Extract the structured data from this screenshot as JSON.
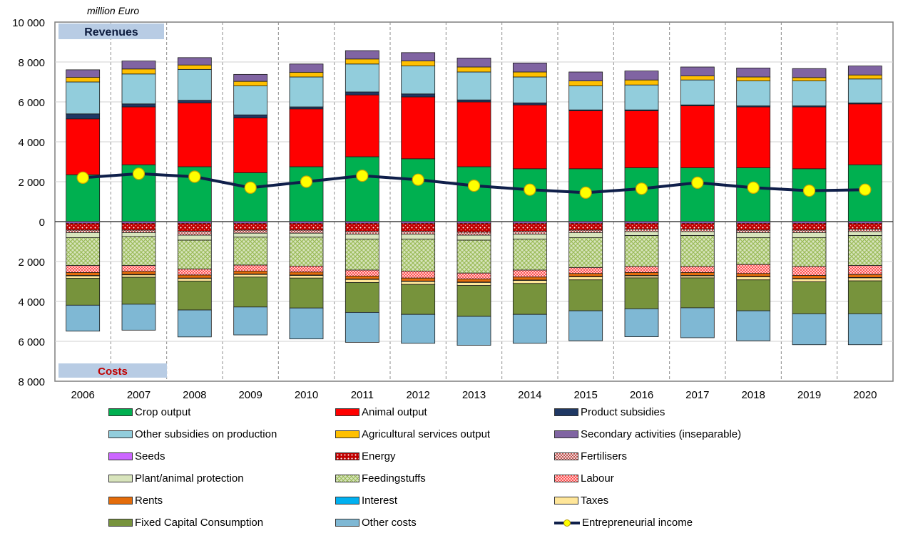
{
  "chart_data": {
    "type": "bar",
    "stacked": true,
    "unit_label": "million Euro",
    "revenues_label": "Revenues",
    "costs_label": "Costs",
    "categories": [
      "2006",
      "2007",
      "2008",
      "2009",
      "2010",
      "2011",
      "2012",
      "2013",
      "2014",
      "2015",
      "2016",
      "2017",
      "2018",
      "2019",
      "2020"
    ],
    "y_axis": {
      "ylim": [
        -8000,
        10000
      ],
      "ticks": [
        10000,
        8000,
        6000,
        4000,
        2000,
        0,
        -2000,
        -4000,
        -6000,
        -8000
      ],
      "tick_labels": [
        "10 000",
        "8 000",
        "6 000",
        "4 000",
        "2 000",
        "0",
        "2 000",
        "4 000",
        "6 000",
        "8 000"
      ]
    },
    "grid": true,
    "legend_position": "bottom",
    "revenue_series": [
      {
        "name": "Crop output",
        "color": "#00b050",
        "pattern": "solid",
        "values": [
          2350,
          2850,
          2750,
          2450,
          2750,
          3250,
          3150,
          2750,
          2650,
          2650,
          2700,
          2700,
          2700,
          2650,
          2850
        ]
      },
      {
        "name": "Animal output",
        "color": "#ff0000",
        "pattern": "solid",
        "values": [
          2800,
          2900,
          3200,
          2750,
          2900,
          3100,
          3100,
          3250,
          3200,
          2900,
          2850,
          3100,
          3050,
          3100,
          3050
        ]
      },
      {
        "name": "Product subsidies",
        "color": "#1f3864",
        "pattern": "solid",
        "values": [
          250,
          150,
          130,
          150,
          100,
          150,
          150,
          100,
          100,
          50,
          50,
          50,
          50,
          50,
          50
        ]
      },
      {
        "name": "Other subsidies on production",
        "color": "#92cddc",
        "pattern": "solid",
        "values": [
          1600,
          1500,
          1550,
          1450,
          1500,
          1400,
          1400,
          1400,
          1300,
          1200,
          1250,
          1250,
          1250,
          1250,
          1200
        ]
      },
      {
        "name": "Agricultural services output",
        "color": "#ffc000",
        "pattern": "solid",
        "values": [
          230,
          250,
          220,
          230,
          230,
          250,
          250,
          250,
          250,
          250,
          250,
          200,
          200,
          170,
          200
        ]
      },
      {
        "name": "Secondary activities (inseparable)",
        "color": "#8064a2",
        "pattern": "solid",
        "values": [
          380,
          400,
          370,
          350,
          420,
          420,
          420,
          450,
          450,
          450,
          450,
          450,
          450,
          450,
          450
        ]
      }
    ],
    "cost_series": [
      {
        "name": "Seeds",
        "color": "#cc66ff",
        "pattern": "solid",
        "values": [
          80,
          80,
          80,
          80,
          80,
          80,
          80,
          80,
          80,
          80,
          80,
          80,
          80,
          80,
          80
        ]
      },
      {
        "name": "Energy",
        "color": "#c00000",
        "pattern": "dots",
        "values": [
          350,
          350,
          400,
          350,
          350,
          400,
          400,
          450,
          400,
          350,
          300,
          300,
          350,
          350,
          300
        ]
      },
      {
        "name": "Fertilisers",
        "color": "#e6b9b8",
        "pattern": "check",
        "values": [
          120,
          120,
          200,
          150,
          150,
          150,
          150,
          150,
          150,
          120,
          120,
          120,
          120,
          120,
          120
        ]
      },
      {
        "name": "Plant/animal protection",
        "color": "#d8e4bc",
        "pattern": "solid",
        "values": [
          250,
          200,
          250,
          200,
          200,
          250,
          250,
          250,
          250,
          250,
          200,
          200,
          250,
          250,
          200
        ]
      },
      {
        "name": "Feedingstuffs",
        "color": "#9bbb59",
        "pattern": "grid",
        "values": [
          1400,
          1450,
          1450,
          1400,
          1450,
          1550,
          1600,
          1650,
          1550,
          1500,
          1550,
          1550,
          1350,
          1450,
          1500
        ]
      },
      {
        "name": "Labour",
        "color": "#ff9999",
        "pattern": "check",
        "values": [
          350,
          300,
          300,
          300,
          300,
          300,
          350,
          300,
          350,
          300,
          300,
          300,
          450,
          450,
          450
        ]
      },
      {
        "name": "Rents",
        "color": "#e46c0a",
        "pattern": "solid",
        "values": [
          150,
          150,
          150,
          150,
          150,
          150,
          150,
          150,
          150,
          150,
          150,
          150,
          150,
          150,
          150
        ]
      },
      {
        "name": "Interest",
        "color": "#00b0f0",
        "pattern": "solid",
        "values": [
          20,
          20,
          20,
          20,
          20,
          20,
          20,
          20,
          20,
          20,
          20,
          20,
          20,
          20,
          20
        ]
      },
      {
        "name": "Taxes",
        "color": "#ffe699",
        "pattern": "solid",
        "values": [
          120,
          120,
          130,
          130,
          130,
          150,
          150,
          150,
          150,
          150,
          100,
          100,
          150,
          150,
          150
        ]
      },
      {
        "name": "Fixed Capital Consumption",
        "color": "#77933c",
        "pattern": "solid",
        "values": [
          1350,
          1350,
          1450,
          1500,
          1500,
          1500,
          1500,
          1550,
          1550,
          1550,
          1550,
          1500,
          1550,
          1600,
          1650
        ]
      },
      {
        "name": "Other costs",
        "color": "#7fb8d4",
        "pattern": "solid",
        "values": [
          1300,
          1300,
          1350,
          1400,
          1550,
          1500,
          1450,
          1450,
          1450,
          1500,
          1400,
          1500,
          1500,
          1550,
          1550
        ]
      }
    ],
    "line_series": {
      "name": "Entrepreneurial income",
      "color": "#0f1f4a",
      "marker_color": "#ffff00",
      "values": [
        2200,
        2400,
        2250,
        1700,
        2000,
        2300,
        2100,
        1800,
        1600,
        1450,
        1650,
        1950,
        1700,
        1550,
        1600
      ]
    }
  },
  "legend": [
    {
      "label": "Crop output",
      "color": "#00b050",
      "pattern": "solid"
    },
    {
      "label": "Animal output",
      "color": "#ff0000",
      "pattern": "solid"
    },
    {
      "label": "Product subsidies",
      "color": "#1f3864",
      "pattern": "solid"
    },
    {
      "label": "Other subsidies on production",
      "color": "#92cddc",
      "pattern": "solid"
    },
    {
      "label": "Agricultural services output",
      "color": "#ffc000",
      "pattern": "solid"
    },
    {
      "label": "Secondary activities (inseparable)",
      "color": "#8064a2",
      "pattern": "solid"
    },
    {
      "label": "Seeds",
      "color": "#cc66ff",
      "pattern": "solid"
    },
    {
      "label": "Energy",
      "color": "#c00000",
      "pattern": "dots"
    },
    {
      "label": "Fertilisers",
      "color": "#e6b9b8",
      "pattern": "check"
    },
    {
      "label": "Plant/animal protection",
      "color": "#d8e4bc",
      "pattern": "solid"
    },
    {
      "label": "Feedingstuffs",
      "color": "#9bbb59",
      "pattern": "grid"
    },
    {
      "label": "Labour",
      "color": "#ff9999",
      "pattern": "check"
    },
    {
      "label": "Rents",
      "color": "#e46c0a",
      "pattern": "solid"
    },
    {
      "label": "Interest",
      "color": "#00b0f0",
      "pattern": "solid"
    },
    {
      "label": "Taxes",
      "color": "#ffe699",
      "pattern": "solid"
    },
    {
      "label": "Fixed Capital Consumption",
      "color": "#77933c",
      "pattern": "solid"
    },
    {
      "label": "Other costs",
      "color": "#7fb8d4",
      "pattern": "solid"
    },
    {
      "label": "Entrepreneurial income",
      "color": "#0f1f4a",
      "pattern": "line"
    }
  ]
}
